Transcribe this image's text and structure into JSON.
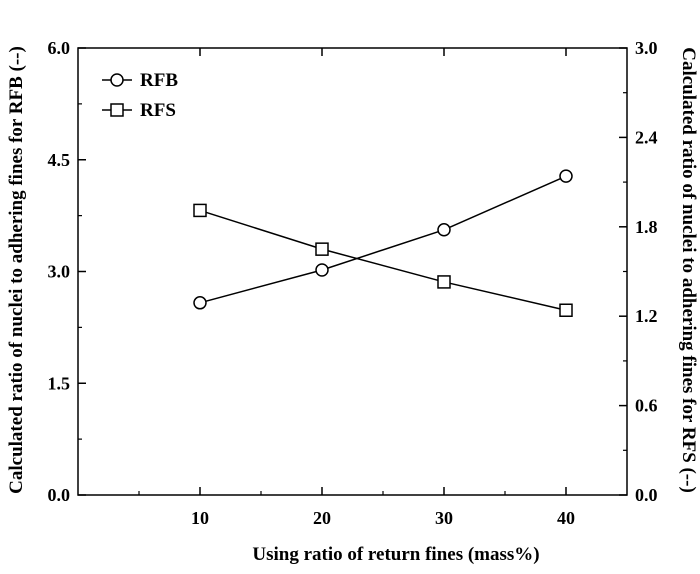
{
  "chart_data": {
    "type": "line",
    "xlabel": "Using ratio of return fines (mass%)",
    "ylabel_left": "Calculated ratio of nuclei to adhering fines for RFB (--)",
    "ylabel_right": "Calculated ratio of nuclei to adhering fines for RFS (--)",
    "x_ticks": [
      "10",
      "20",
      "30",
      "40"
    ],
    "y_left_ticks": [
      "0.0",
      "1.5",
      "3.0",
      "4.5",
      "6.0"
    ],
    "y_right_ticks": [
      "0.0",
      "0.6",
      "1.2",
      "1.8",
      "2.4",
      "3.0"
    ],
    "xlim": [
      0,
      45
    ],
    "ylim_left": [
      0,
      6
    ],
    "ylim_right": [
      0,
      3
    ],
    "grid": false,
    "legend_position": "top-left",
    "series": [
      {
        "name": "RFB",
        "axis": "left",
        "marker": "circle",
        "x": [
          10,
          20,
          30,
          40
        ],
        "y": [
          2.58,
          3.02,
          3.56,
          4.28
        ]
      },
      {
        "name": "RFS",
        "axis": "right",
        "marker": "square",
        "x": [
          10,
          20,
          30,
          40
        ],
        "y": [
          1.91,
          1.65,
          1.43,
          1.24
        ]
      }
    ]
  }
}
